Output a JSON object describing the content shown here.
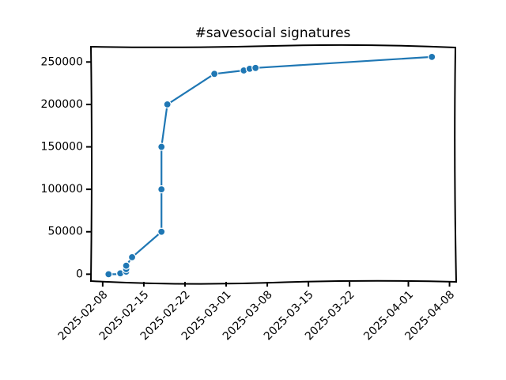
{
  "chart_data": {
    "type": "line",
    "title": "#savesocial signatures",
    "x": [
      "2025-02-09",
      "2025-02-11",
      "2025-02-11",
      "2025-02-12",
      "2025-02-12",
      "2025-02-12",
      "2025-02-13",
      "2025-02-18",
      "2025-02-18",
      "2025-02-18",
      "2025-02-19",
      "2025-02-27",
      "2025-03-04",
      "2025-03-05",
      "2025-03-06",
      "2025-04-05"
    ],
    "series": [
      {
        "name": "signatures",
        "color": "#1f77b4",
        "values": [
          0,
          0,
          1000,
          3000,
          6000,
          10000,
          20000,
          50000,
          100000,
          150000,
          200000,
          236000,
          240000,
          242000,
          243000,
          256000
        ]
      }
    ],
    "xlim": [
      "2025-02-06",
      "2025-04-09"
    ],
    "xticks": [
      "2025-02-08",
      "2025-02-15",
      "2025-02-22",
      "2025-03-01",
      "2025-03-08",
      "2025-03-15",
      "2025-03-22",
      "2025-04-01",
      "2025-04-08"
    ],
    "ylim": [
      -9000,
      268000
    ],
    "yticks": [
      0,
      50000,
      100000,
      150000,
      200000,
      250000
    ]
  }
}
